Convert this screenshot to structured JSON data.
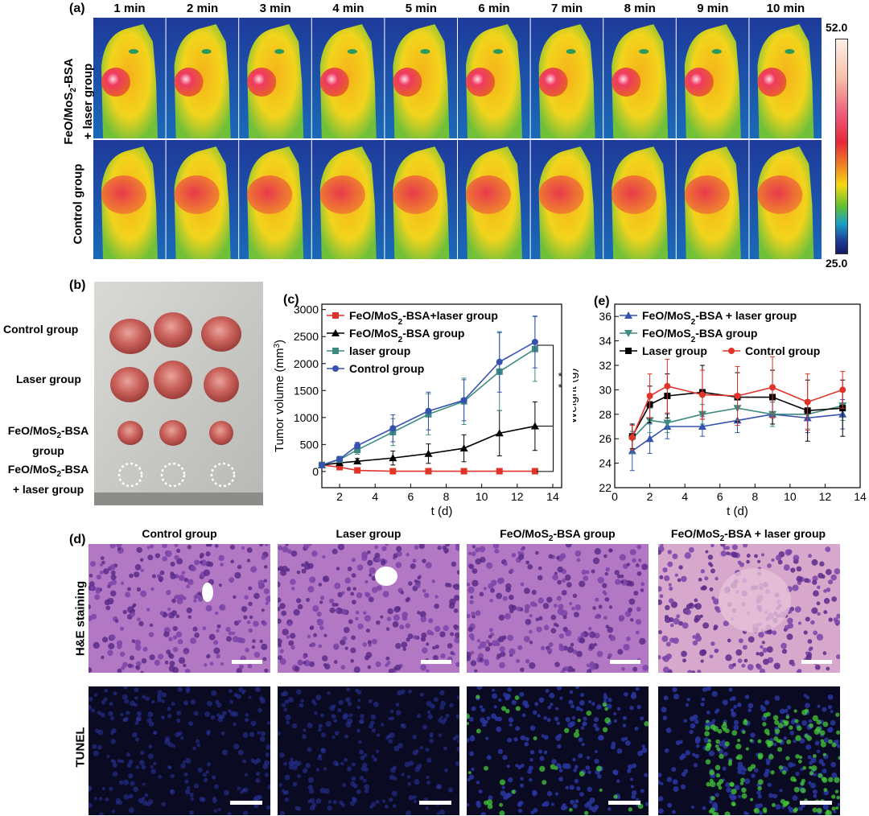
{
  "panel_a": {
    "label": "(a)",
    "times": [
      "1 min",
      "2 min",
      "3 min",
      "4 min",
      "5 min",
      "6 min",
      "7 min",
      "8 min",
      "9 min",
      "10 min"
    ],
    "row1_line1": "FeO/MoS",
    "row1_sub": "2",
    "row1_line1b": "-BSA",
    "row1_line2": "+ laser group",
    "row2_label": "Control group",
    "colorbar_max": "52.0",
    "colorbar_min": "25.0"
  },
  "panel_b": {
    "label": "(b)",
    "groups": [
      "Control group",
      "Laser group"
    ],
    "g3_a": "FeO/MoS",
    "g3_sub": "2",
    "g3_b": "-BSA",
    "g3_c": "group",
    "g4_a": "FeO/MoS",
    "g4_sub": "2",
    "g4_b": "-BSA",
    "g4_c": "+ laser group"
  },
  "panel_d": {
    "label": "(d)",
    "col1": "Control group",
    "col2": "Laser group",
    "col3_a": "FeO/MoS",
    "col3_sub": "2",
    "col3_b": "-BSA group",
    "col4_a": "FeO/MoS",
    "col4_sub": "2",
    "col4_b": "-BSA + laser group",
    "row1": "H&E staining",
    "row2": "TUNEL"
  },
  "chart_data": [
    {
      "panel": "(c)",
      "type": "line",
      "xlabel": "t (d)",
      "ylabel": "Tumor volume (mm",
      "ylabel_sup": "3",
      "ylabel_end": ")",
      "xlim": [
        1,
        14.5
      ],
      "ylim": [
        -300,
        3100
      ],
      "xticks": [
        2,
        4,
        6,
        8,
        10,
        12,
        14
      ],
      "yticks": [
        0,
        500,
        1000,
        1500,
        2000,
        2500,
        3000
      ],
      "significance": "* *",
      "series": [
        {
          "name": "FeO/MoS2-BSA+laser group",
          "legend_a": "FeO/MoS",
          "legend_sub": "2",
          "legend_b": "-BSA+laser group",
          "color": "#e0342b",
          "marker": "square",
          "x": [
            1,
            2,
            3,
            5,
            7,
            9,
            11,
            13
          ],
          "y": [
            120,
            80,
            20,
            5,
            5,
            5,
            5,
            5
          ],
          "err": [
            30,
            30,
            15,
            10,
            10,
            10,
            10,
            10
          ]
        },
        {
          "name": "FeO/MoS2-BSA group",
          "legend_a": "FeO/MoS",
          "legend_sub": "2",
          "legend_b": "-BSA group",
          "color": "#000000",
          "marker": "triangle",
          "x": [
            1,
            2,
            3,
            5,
            7,
            9,
            11,
            13
          ],
          "y": [
            120,
            160,
            190,
            250,
            330,
            430,
            710,
            840
          ],
          "err": [
            30,
            40,
            50,
            130,
            180,
            250,
            420,
            450
          ]
        },
        {
          "name": "laser group",
          "legend_a": "laser group",
          "legend_sub": "",
          "legend_b": "",
          "color": "#3d8b80",
          "marker": "square",
          "x": [
            1,
            2,
            3,
            5,
            7,
            9,
            11,
            13
          ],
          "y": [
            120,
            220,
            400,
            730,
            1060,
            1300,
            1850,
            2270
          ],
          "err": [
            30,
            50,
            80,
            250,
            380,
            430,
            720,
            600
          ]
        },
        {
          "name": "Control group",
          "legend_a": "Control group",
          "legend_sub": "",
          "legend_b": "",
          "color": "#3552b0",
          "marker": "circle",
          "x": [
            1,
            2,
            3,
            5,
            7,
            9,
            11,
            13
          ],
          "y": [
            120,
            230,
            480,
            800,
            1120,
            1320,
            2030,
            2400
          ],
          "err": [
            30,
            50,
            60,
            250,
            350,
            380,
            560,
            480
          ]
        }
      ]
    },
    {
      "panel": "(e)",
      "type": "line",
      "xlabel": "t (d)",
      "ylabel": "Weight (g)",
      "xlim": [
        0,
        14
      ],
      "ylim": [
        22,
        37
      ],
      "xticks": [
        0,
        2,
        4,
        6,
        8,
        10,
        12,
        14
      ],
      "yticks": [
        22,
        24,
        26,
        28,
        30,
        32,
        34,
        36
      ],
      "series": [
        {
          "name": "FeO/MoS2-BSA + laser group",
          "legend_a": "FeO/MoS",
          "legend_sub": "2",
          "legend_b": "-BSA + laser group",
          "color": "#3552b0",
          "marker": "triangle",
          "x": [
            1,
            2,
            3,
            5,
            7,
            9,
            11,
            13
          ],
          "y": [
            25.0,
            26.0,
            27.0,
            27.0,
            27.5,
            28.0,
            27.7,
            28.0
          ],
          "err": [
            1.6,
            1.2,
            1.0,
            0.8,
            1.0,
            1.0,
            1.2,
            1.2
          ]
        },
        {
          "name": "FeO/MoS2-BSA group",
          "legend_a": "FeO/MoS",
          "legend_sub": "2",
          "legend_b": "-BSA group",
          "color": "#3d8b80",
          "marker": "triangledown",
          "x": [
            1,
            2,
            3,
            5,
            7,
            9,
            11,
            13
          ],
          "y": [
            26.0,
            27.5,
            27.3,
            28.0,
            28.5,
            28.0,
            28.0,
            28.7
          ],
          "err": [
            1.2,
            1.0,
            0.8,
            0.8,
            1.0,
            1.0,
            1.2,
            1.2
          ]
        },
        {
          "name": "Laser group",
          "legend_a": "Laser group",
          "legend_sub": "",
          "legend_b": "",
          "color": "#000000",
          "marker": "square",
          "x": [
            1,
            2,
            3,
            5,
            7,
            9,
            11,
            13
          ],
          "y": [
            26.2,
            28.8,
            29.5,
            29.8,
            29.4,
            29.4,
            28.3,
            28.5
          ],
          "err": [
            1.0,
            1.5,
            1.8,
            2.2,
            2.0,
            2.2,
            2.5,
            2.3
          ]
        },
        {
          "name": "Control group",
          "legend_a": "Control group",
          "legend_sub": "",
          "legend_b": "",
          "color": "#e0342b",
          "marker": "circle",
          "x": [
            1,
            2,
            3,
            5,
            7,
            9,
            11,
            13
          ],
          "y": [
            26.1,
            29.5,
            30.3,
            29.6,
            29.5,
            30.2,
            29.0,
            30.0
          ],
          "err": [
            1.0,
            1.8,
            2.2,
            2.0,
            2.4,
            2.5,
            2.3,
            1.5
          ]
        }
      ]
    }
  ]
}
